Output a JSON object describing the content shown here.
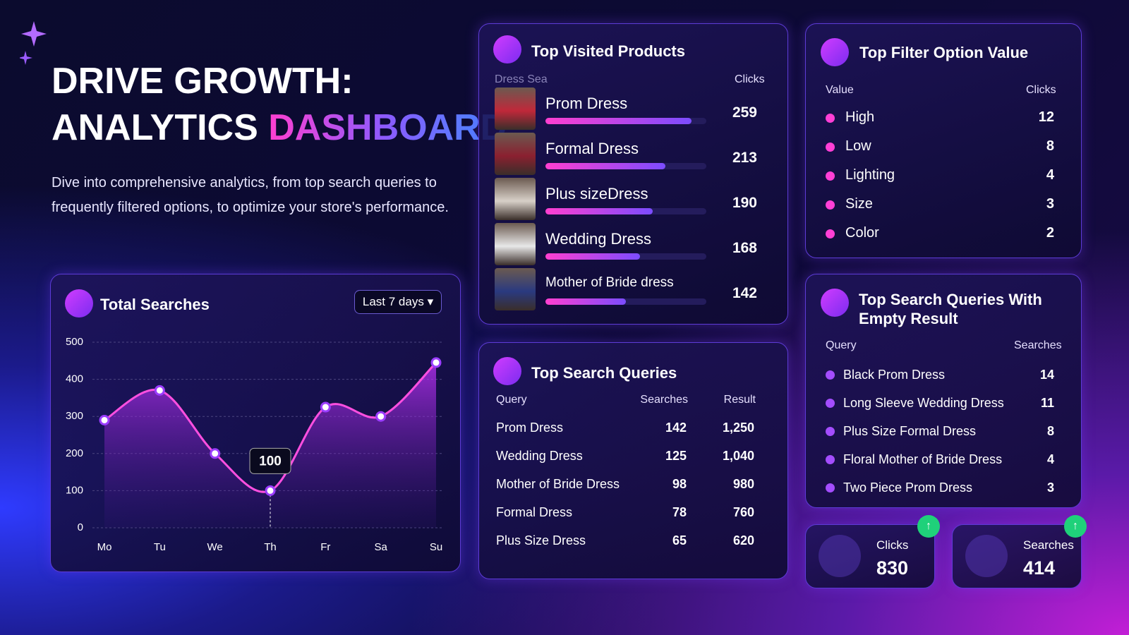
{
  "header": {
    "title_line1": "DRIVE GROWTH:",
    "title_line2": "ANALYTICS",
    "title_highlight": "DASHBOARD",
    "description": "Dive into comprehensive analytics, from top search queries to frequently filtered options, to optimize your store's performance."
  },
  "chart_data": {
    "type": "line",
    "title": "Total Searches",
    "range_label": "Last 7 days",
    "categories": [
      "Mo",
      "Tu",
      "We",
      "Th",
      "Fr",
      "Sa",
      "Su"
    ],
    "values": [
      290,
      370,
      200,
      100,
      325,
      300,
      445
    ],
    "highlight_index": 3,
    "color": "#ff4fe0",
    "ylim": [
      0,
      500
    ],
    "yticks": [
      0,
      100,
      200,
      300,
      400,
      500
    ],
    "grid": true
  },
  "top_visited": {
    "title": "Top Visited Products",
    "col_product": "Dress Sea",
    "col_clicks": "Clicks",
    "items": [
      {
        "name": "Prom Dress",
        "clicks": 259
      },
      {
        "name": "Formal Dress",
        "clicks": 213
      },
      {
        "name": "Plus sizeDress",
        "clicks": 190
      },
      {
        "name": "Wedding Dress",
        "clicks": 168
      },
      {
        "name": "Mother of Bride dress",
        "clicks": 142
      }
    ]
  },
  "top_filter": {
    "title": "Top Filter Option Value",
    "col_value": "Value",
    "col_clicks": "Clicks",
    "rows": [
      {
        "value": "High",
        "clicks": 12
      },
      {
        "value": "Low",
        "clicks": 8
      },
      {
        "value": "Lighting",
        "clicks": 4
      },
      {
        "value": "Size",
        "clicks": 3
      },
      {
        "value": "Color",
        "clicks": 2
      }
    ]
  },
  "top_queries": {
    "title": "Top Search Queries",
    "columns": [
      "Query",
      "Searches",
      "Result"
    ],
    "rows": [
      [
        "Prom Dress",
        142,
        "1,250"
      ],
      [
        "Wedding Dress",
        125,
        "1,040"
      ],
      [
        "Mother of Bride Dress",
        98,
        "980"
      ],
      [
        "Formal Dress",
        78,
        "760"
      ],
      [
        "Plus Size Dress",
        65,
        "620"
      ]
    ]
  },
  "empty_result": {
    "title": "Top Search Queries With Empty Result",
    "col_query": "Query",
    "col_searches": "Searches",
    "rows": [
      {
        "query": "Black Prom Dress",
        "searches": 14
      },
      {
        "query": "Long Sleeve Wedding Dress",
        "searches": 11
      },
      {
        "query": "Plus Size Formal Dress",
        "searches": 8
      },
      {
        "query": "Floral Mother of Bride Dress",
        "searches": 4
      },
      {
        "query": "Two Piece Prom Dress",
        "searches": 3
      }
    ]
  },
  "kpis": [
    {
      "label": "Clicks",
      "value": 830
    },
    {
      "label": "Searches",
      "value": 414
    }
  ]
}
